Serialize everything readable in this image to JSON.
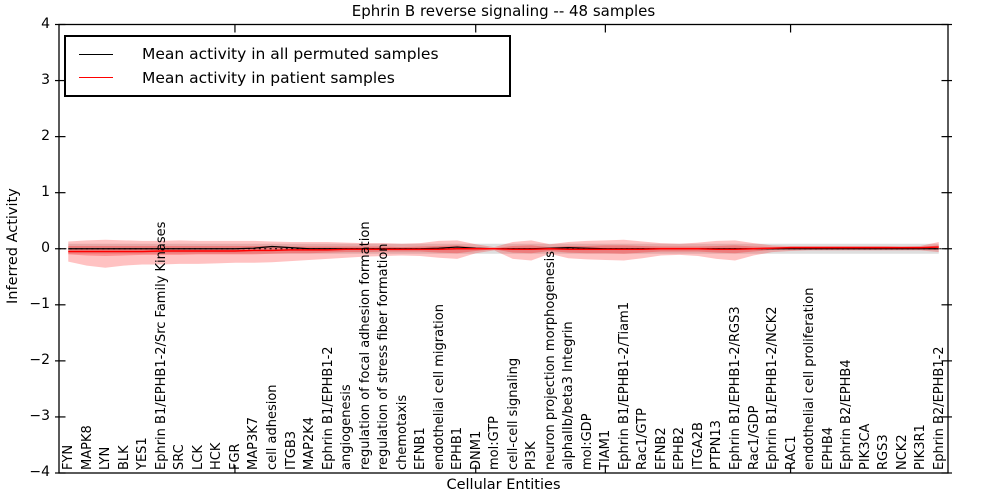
{
  "title": "Ephrin B reverse signaling -- 48 samples",
  "legend": {
    "position": "upper left",
    "items": [
      {
        "label": "Mean activity in all permuted samples",
        "color": "#000000"
      },
      {
        "label": "Mean activity in patient samples",
        "color": "#ff0000"
      }
    ]
  },
  "colors": {
    "patient_line": "#ff0000",
    "permuted_line": "#000000",
    "patient_fill": "#ff0000",
    "permuted_fill": "#000000",
    "background": "#ffffff"
  },
  "chart_data": {
    "type": "line",
    "title": "Ephrin B reverse signaling -- 48 samples",
    "xlabel": "Cellular Entities",
    "ylabel": "Inferred Activity",
    "ylim": [
      -4,
      4
    ],
    "yticks": [
      4,
      3,
      2,
      1,
      0,
      -1,
      -2,
      -3,
      -4
    ],
    "ytick_labels": [
      "4",
      "3",
      "2",
      "1",
      "0",
      "−1",
      "−2",
      "−3",
      "−4"
    ],
    "grid": false,
    "legend_position": "upper left",
    "zero_line": {
      "y": 0,
      "style": "dotted",
      "color": "#000000"
    },
    "extra_tick_indices": [
      9,
      22,
      29,
      39
    ],
    "categories": [
      "FYN",
      "MAPK8",
      "LYN",
      "BLK",
      "YES1",
      "Ephrin B1/EPHB1-2/Src Family Kinases",
      "SRC",
      "LCK",
      "HCK",
      "FGR",
      "MAP3K7",
      "cell adhesion",
      "ITGB3",
      "MAP2K4",
      "Ephrin B1/EPHB1-2",
      "angiogenesis",
      "regulation of focal adhesion formation",
      "regulation of stress fiber formation",
      "chemotaxis",
      "EFNB1",
      "endothelial cell migration",
      "EPHB1",
      "DNM1",
      "mol:GTP",
      "cell-cell signaling",
      "PI3K",
      "neuron projection morphogenesis",
      "alphaIIb/beta3 Integrin",
      "mol:GDP",
      "TIAM1",
      "Ephrin B1/EPHB1-2/Tiam1",
      "Rac1/GTP",
      "EFNB2",
      "EPHB2",
      "ITGA2B",
      "PTPN13",
      "Ephrin B1/EPHB1-2/RGS3",
      "Rac1/GDP",
      "Ephrin B1/EPHB1-2/NCK2",
      "RAC1",
      "endothelial cell proliferation",
      "EPHB4",
      "Ephrin B2/EPHB4",
      "PIK3CA",
      "RGS3",
      "NCK2",
      "PIK3R1",
      "Ephrin B2/EPHB1-2"
    ],
    "series": [
      {
        "name": "Mean activity in all permuted samples",
        "color": "#000000",
        "values": [
          0,
          0,
          0,
          0,
          0,
          0,
          0,
          0,
          0,
          0,
          0.01,
          0.04,
          0.02,
          0,
          0,
          0,
          0,
          0,
          0,
          0,
          0.01,
          0.03,
          0.01,
          0,
          0,
          0,
          0.01,
          0.02,
          0.01,
          0,
          0,
          0,
          0,
          0,
          0,
          0,
          0,
          0,
          0,
          0,
          0,
          0,
          0,
          0,
          0,
          0,
          0,
          0
        ]
      },
      {
        "name": "Mean activity in patient samples",
        "color": "#ff0000",
        "values": [
          -0.05,
          -0.05,
          -0.05,
          -0.05,
          -0.05,
          -0.04,
          -0.04,
          -0.04,
          -0.04,
          -0.04,
          -0.03,
          -0.03,
          -0.02,
          -0.02,
          -0.02,
          -0.01,
          -0.01,
          -0.01,
          -0.01,
          -0.01,
          -0.01,
          0,
          0,
          0,
          -0.01,
          -0.01,
          0,
          -0.01,
          -0.01,
          -0.01,
          -0.01,
          -0.01,
          0,
          0,
          0,
          -0.01,
          -0.01,
          0,
          0.01,
          0.02,
          0.02,
          0.02,
          0.02,
          0.02,
          0.02,
          0.02,
          0.02,
          0.03
        ]
      }
    ],
    "bands": [
      {
        "name": "permuted-samples-range",
        "color": "#000000",
        "opacity": 0.13,
        "upper_const": 0.09,
        "lower_const": -0.09
      },
      {
        "name": "patient-samples-range",
        "color": "#ff0000",
        "opacity": 0.24,
        "upper": [
          0.13,
          0.15,
          0.16,
          0.15,
          0.14,
          0.14,
          0.15,
          0.14,
          0.14,
          0.14,
          0.14,
          0.13,
          0.12,
          0.12,
          0.12,
          0.11,
          0.1,
          0.1,
          0.09,
          0.1,
          0.14,
          0.15,
          0.08,
          0.03,
          0.12,
          0.15,
          0.08,
          0.12,
          0.14,
          0.15,
          0.16,
          0.13,
          0.1,
          0.09,
          0.11,
          0.14,
          0.15,
          0.1,
          0.06,
          0.05,
          0.05,
          0.05,
          0.05,
          0.05,
          0.05,
          0.04,
          0.05,
          0.12
        ],
        "lower": [
          -0.23,
          -0.3,
          -0.34,
          -0.3,
          -0.28,
          -0.28,
          -0.27,
          -0.27,
          -0.26,
          -0.25,
          -0.25,
          -0.24,
          -0.22,
          -0.2,
          -0.18,
          -0.16,
          -0.14,
          -0.13,
          -0.12,
          -0.13,
          -0.16,
          -0.18,
          -0.08,
          -0.03,
          -0.18,
          -0.21,
          -0.09,
          -0.17,
          -0.19,
          -0.2,
          -0.21,
          -0.17,
          -0.12,
          -0.11,
          -0.13,
          -0.18,
          -0.21,
          -0.12,
          -0.06,
          -0.04,
          -0.03,
          -0.03,
          -0.03,
          -0.03,
          -0.03,
          -0.03,
          -0.03,
          -0.06
        ]
      },
      {
        "name": "patient-samples-std",
        "color": "#ff0000",
        "opacity": 0.26,
        "upper": [
          0.05,
          0.05,
          0.05,
          0.05,
          0.05,
          0.05,
          0.05,
          0.05,
          0.05,
          0.05,
          0.05,
          0.05,
          0.04,
          0.04,
          0.04,
          0.04,
          0.04,
          0.04,
          0.03,
          0.04,
          0.05,
          0.06,
          0.03,
          0.01,
          0.05,
          0.06,
          0.03,
          0.05,
          0.05,
          0.06,
          0.06,
          0.05,
          0.04,
          0.04,
          0.04,
          0.05,
          0.06,
          0.04,
          0.03,
          0.03,
          0.03,
          0.03,
          0.03,
          0.03,
          0.02,
          0.02,
          0.03,
          0.06
        ],
        "lower": [
          -0.1,
          -0.12,
          -0.13,
          -0.12,
          -0.11,
          -0.11,
          -0.11,
          -0.1,
          -0.1,
          -0.1,
          -0.1,
          -0.09,
          -0.08,
          -0.08,
          -0.07,
          -0.06,
          -0.06,
          -0.05,
          -0.05,
          -0.05,
          -0.07,
          -0.08,
          -0.04,
          -0.01,
          -0.07,
          -0.08,
          -0.04,
          -0.07,
          -0.08,
          -0.08,
          -0.09,
          -0.07,
          -0.05,
          -0.05,
          -0.05,
          -0.07,
          -0.08,
          -0.05,
          -0.02,
          -0.01,
          -0.01,
          -0.01,
          -0.01,
          -0.01,
          -0.01,
          -0.01,
          -0.01,
          -0.02
        ]
      }
    ]
  }
}
